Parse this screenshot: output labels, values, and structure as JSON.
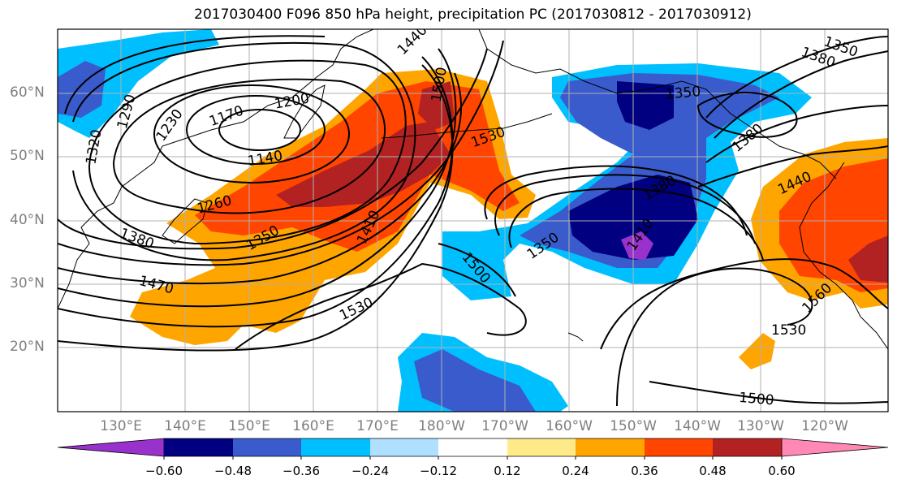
{
  "title": "2017030400 F096 850 hPa height, precipitation PC (2017030812 - 2017030912)",
  "latitude_labels": [
    "60°N",
    "50°N",
    "40°N",
    "30°N",
    "20°N"
  ],
  "longitude_labels": [
    "130°E",
    "140°E",
    "150°E",
    "160°E",
    "170°E",
    "180°W",
    "170°W",
    "160°W",
    "150°W",
    "140°W",
    "130°W",
    "120°W"
  ],
  "contour_labels": [
    "1440",
    "1170",
    "1200",
    "1230",
    "1290",
    "1320",
    "1140",
    "1260",
    "1350",
    "1380",
    "1410",
    "1470",
    "1500",
    "1530",
    "1530",
    "1350",
    "1380",
    "1410",
    "1350",
    "1380",
    "1440",
    "1560",
    "1530",
    "1500",
    "1500",
    "1350",
    "1380"
  ],
  "colorbar": {
    "colors": [
      "#9932cc",
      "#000080",
      "#3a5bcc",
      "#00bfff",
      "#b0e0ff",
      "#ffffff",
      "#ffea8a",
      "#ffa500",
      "#ff4500",
      "#b22222",
      "#ff88b4"
    ],
    "tick_labels": [
      "−0.60",
      "−0.48",
      "−0.36",
      "−0.24",
      "−0.12",
      "0.12",
      "0.24",
      "0.36",
      "0.48",
      "0.60"
    ]
  },
  "colors": {
    "grid": "#b0b0b0",
    "axis_label": "#7f7f7f",
    "contour": "#000000",
    "frame": "#000000"
  }
}
